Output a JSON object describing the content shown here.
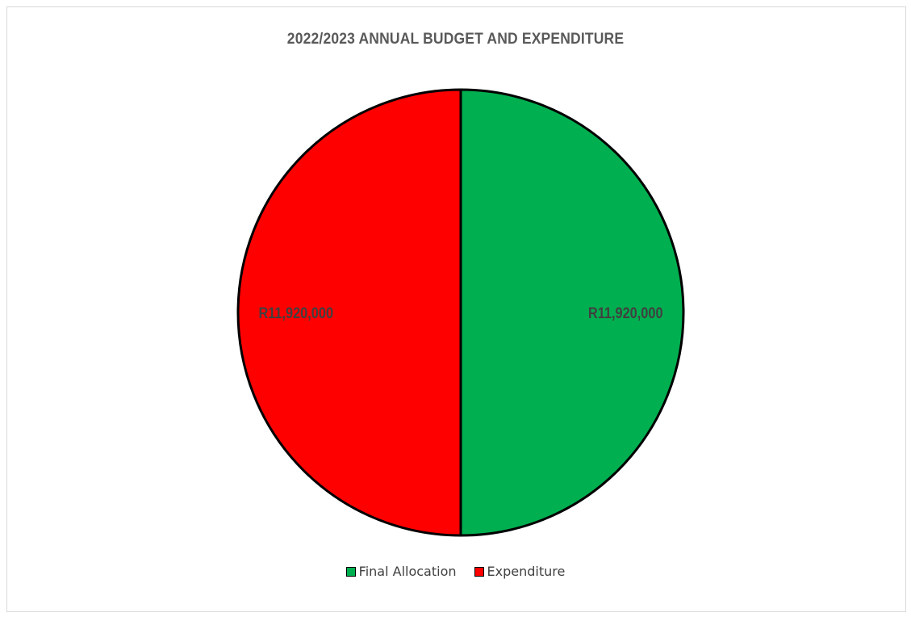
{
  "chart_data": {
    "type": "pie",
    "title": "2022/2023  ANNUAL BUDGET AND EXPENDITURE",
    "categories": [
      "Final Allocation",
      "Expenditure"
    ],
    "values": [
      11920000,
      11920000
    ],
    "data_labels": [
      "R11,920,000",
      "R11,920,000"
    ],
    "colors": [
      "#00b050",
      "#ff0000"
    ],
    "legend_position": "bottom",
    "start_angle": "top, clockwise"
  }
}
